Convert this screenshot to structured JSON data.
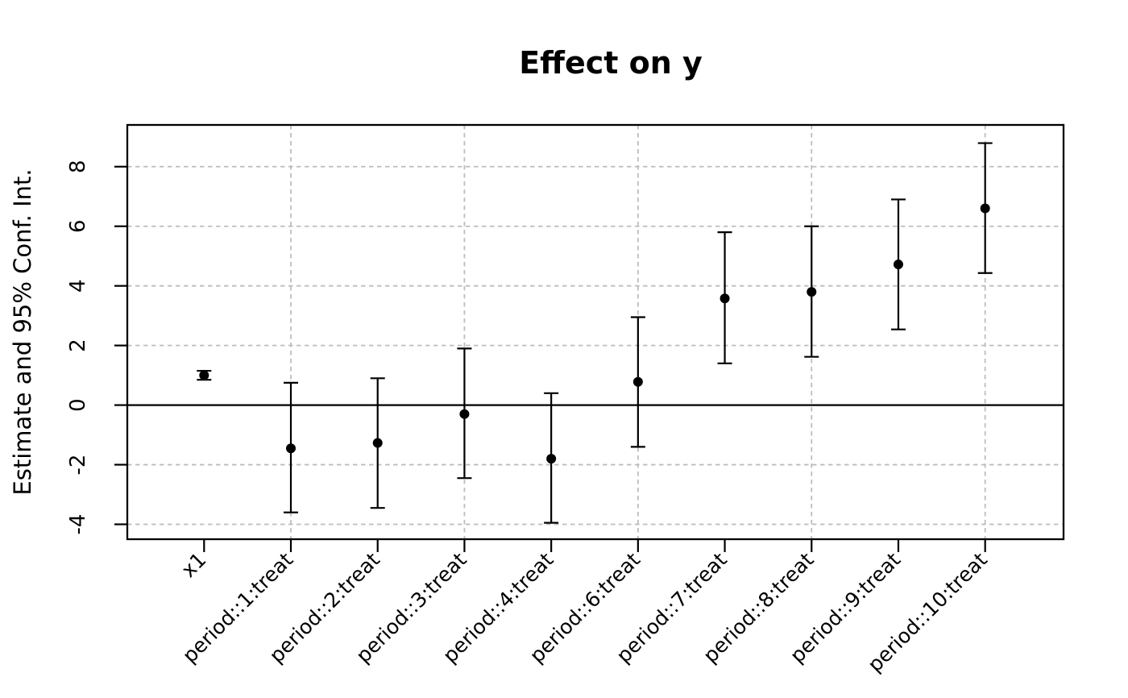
{
  "title": "Effect on y",
  "chart_data": {
    "type": "scatter",
    "variant": "coefficient-plot-with-95ci-error-bars",
    "title": "Effect on y",
    "xlabel": "",
    "ylabel": "Estimate and 95% Conf. Int.",
    "categories": [
      "x1",
      "period::1:treat",
      "period::2:treat",
      "period::3:treat",
      "period::4:treat",
      "period::6:treat",
      "period::7:treat",
      "period::8:treat",
      "period::9:treat",
      "period::10:treat"
    ],
    "series": [
      {
        "name": "Estimate",
        "values": [
          1.0,
          -1.45,
          -1.27,
          -0.3,
          -1.8,
          0.78,
          3.58,
          3.8,
          4.72,
          6.6
        ],
        "ci_low": [
          0.85,
          -3.6,
          -3.45,
          -2.45,
          -3.95,
          -1.4,
          1.4,
          1.62,
          2.54,
          4.43
        ],
        "ci_high": [
          1.15,
          0.75,
          0.9,
          1.9,
          0.4,
          2.95,
          5.8,
          6.0,
          6.9,
          8.79
        ]
      }
    ],
    "yticks": [
      8,
      6,
      4,
      2,
      0,
      -2,
      -4
    ],
    "ylim": [
      -4.5,
      9.4
    ],
    "horizontal_gridlines_at": [
      8,
      6,
      4,
      2,
      -2,
      -4
    ],
    "x_gridlines_at_categories": [
      2,
      4,
      6,
      8,
      10
    ],
    "zero_line": true,
    "grid_style": "dashed",
    "legend": "none",
    "x_tick_label_rotation_deg": 45,
    "y_tick_label_rotation_deg": 90,
    "marker": "filled-circle",
    "colors": {
      "point": "#000000",
      "error_bar": "#000000",
      "zero_line": "#000000",
      "axis": "#000000",
      "grid": "#bdbdbd",
      "background": "#ffffff",
      "title": "#000000"
    }
  }
}
